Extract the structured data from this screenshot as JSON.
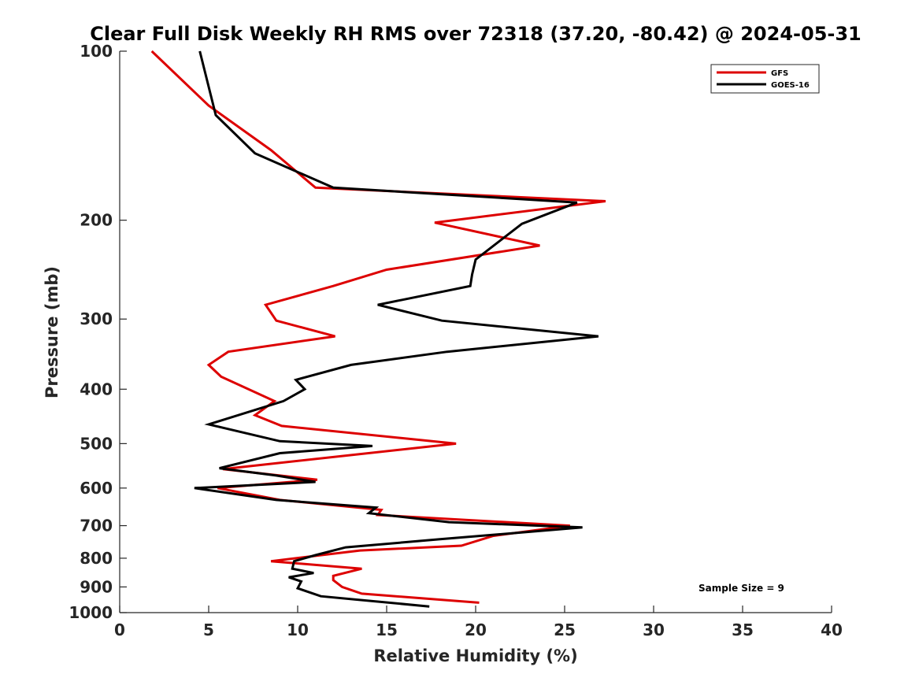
{
  "chart_data": {
    "type": "line",
    "title": "Clear Full Disk Weekly RH RMS over 72318 (37.20, -80.42) @ 2024-05-31",
    "xlabel": "Relative Humidity (%)",
    "ylabel": "Pressure (mb)",
    "xlim": [
      0,
      40
    ],
    "ylim": [
      100,
      1000
    ],
    "y_scale": "log",
    "y_reversed": true,
    "xticks": [
      0,
      5,
      10,
      15,
      20,
      25,
      30,
      35,
      40
    ],
    "yticks": [
      100,
      200,
      300,
      400,
      500,
      600,
      700,
      800,
      900,
      1000
    ],
    "grid": false,
    "legend": "top-right",
    "annotation": "Sample Size = 9",
    "series": [
      {
        "name": "GFS",
        "color": "#dd0000",
        "points": [
          [
            1.8,
            100
          ],
          [
            5.0,
            125
          ],
          [
            8.5,
            150
          ],
          [
            11.0,
            175
          ],
          [
            27.3,
            185
          ],
          [
            17.7,
            202
          ],
          [
            23.6,
            222
          ],
          [
            15.0,
            245
          ],
          [
            12.0,
            262
          ],
          [
            8.2,
            283
          ],
          [
            8.8,
            302
          ],
          [
            12.1,
            322
          ],
          [
            6.1,
            343
          ],
          [
            5.0,
            362
          ],
          [
            5.7,
            380
          ],
          [
            8.7,
            420
          ],
          [
            7.6,
            445
          ],
          [
            9.1,
            465
          ],
          [
            18.9,
            500
          ],
          [
            5.8,
            555
          ],
          [
            11.1,
            580
          ],
          [
            5.5,
            600
          ],
          [
            9.0,
            630
          ],
          [
            14.7,
            656
          ],
          [
            14.5,
            670
          ],
          [
            25.3,
            700
          ],
          [
            21.0,
            730
          ],
          [
            19.2,
            760
          ],
          [
            13.5,
            775
          ],
          [
            8.5,
            810
          ],
          [
            13.6,
            835
          ],
          [
            12.0,
            860
          ],
          [
            12.0,
            875
          ],
          [
            12.5,
            900
          ],
          [
            13.6,
            925
          ],
          [
            20.2,
            960
          ]
        ]
      },
      {
        "name": "GOES-16",
        "color": "#000000",
        "points": [
          [
            4.5,
            100
          ],
          [
            5.4,
            130
          ],
          [
            7.6,
            152
          ],
          [
            12.0,
            175
          ],
          [
            25.7,
            186
          ],
          [
            22.6,
            203
          ],
          [
            20.0,
            235
          ],
          [
            19.8,
            250
          ],
          [
            19.7,
            262
          ],
          [
            14.5,
            283
          ],
          [
            18.1,
            302
          ],
          [
            26.9,
            322
          ],
          [
            18.4,
            343
          ],
          [
            13.0,
            362
          ],
          [
            9.9,
            385
          ],
          [
            10.4,
            400
          ],
          [
            9.2,
            420
          ],
          [
            5.0,
            462
          ],
          [
            9.0,
            495
          ],
          [
            14.2,
            505
          ],
          [
            9.0,
            520
          ],
          [
            5.6,
            553
          ],
          [
            8.8,
            570
          ],
          [
            11.0,
            585
          ],
          [
            4.2,
            600
          ],
          [
            8.8,
            630
          ],
          [
            14.4,
            650
          ],
          [
            14.0,
            665
          ],
          [
            18.5,
            690
          ],
          [
            26.0,
            705
          ],
          [
            18.0,
            740
          ],
          [
            12.7,
            765
          ],
          [
            11.0,
            790
          ],
          [
            9.8,
            810
          ],
          [
            9.7,
            835
          ],
          [
            10.9,
            850
          ],
          [
            9.5,
            865
          ],
          [
            10.2,
            880
          ],
          [
            10.0,
            905
          ],
          [
            11.3,
            935
          ],
          [
            17.4,
            975
          ]
        ]
      }
    ]
  }
}
